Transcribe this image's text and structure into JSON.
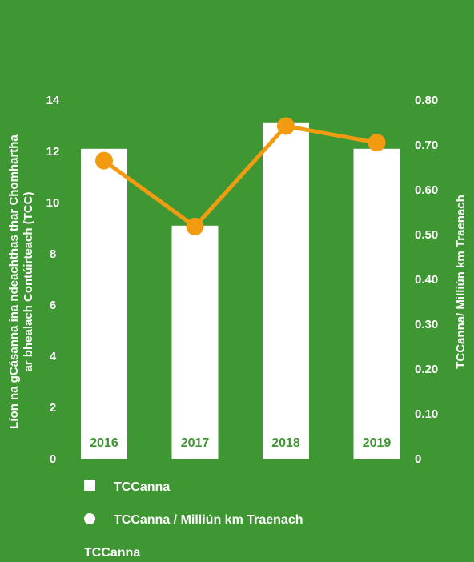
{
  "chart_data": {
    "type": "bar",
    "categories": [
      "2016",
      "2017",
      "2018",
      "2019"
    ],
    "series": [
      {
        "name": "TCCanna",
        "type": "bar",
        "axis": "left",
        "values": [
          12.1,
          9.1,
          13.1,
          12.1
        ]
      },
      {
        "name": "TCCanna / Milliún km Traenach",
        "type": "line",
        "axis": "right",
        "values": [
          0.665,
          0.518,
          0.742,
          0.705
        ]
      }
    ],
    "ylabel_left_line1": "Líon na gCásanna ina ndeachthas thar Chomhartha",
    "ylabel_left_line2": "ar bhealach Contúirteach (TCC)",
    "ylabel_right": "TCCanna/ Milliún km Traenach",
    "ylim_left": [
      0,
      14
    ],
    "ylim_right": [
      0,
      0.8
    ],
    "yticks_left": [
      "0",
      "2",
      "4",
      "6",
      "8",
      "10",
      "12",
      "14"
    ],
    "yticks_right": [
      "0",
      "0.10",
      "0.20",
      "0.30",
      "0.40",
      "0.50",
      "0.60",
      "0.70",
      "0.80"
    ],
    "legend": [
      "TCCanna",
      "TCCanna / Milliún km Traenach"
    ],
    "footer": "TCCanna",
    "colors": {
      "background": "#3e9733",
      "bars": "#ffffff",
      "line": "#f29b11",
      "text": "#ffffff"
    },
    "legend_placement": "bottom",
    "grid": false
  }
}
